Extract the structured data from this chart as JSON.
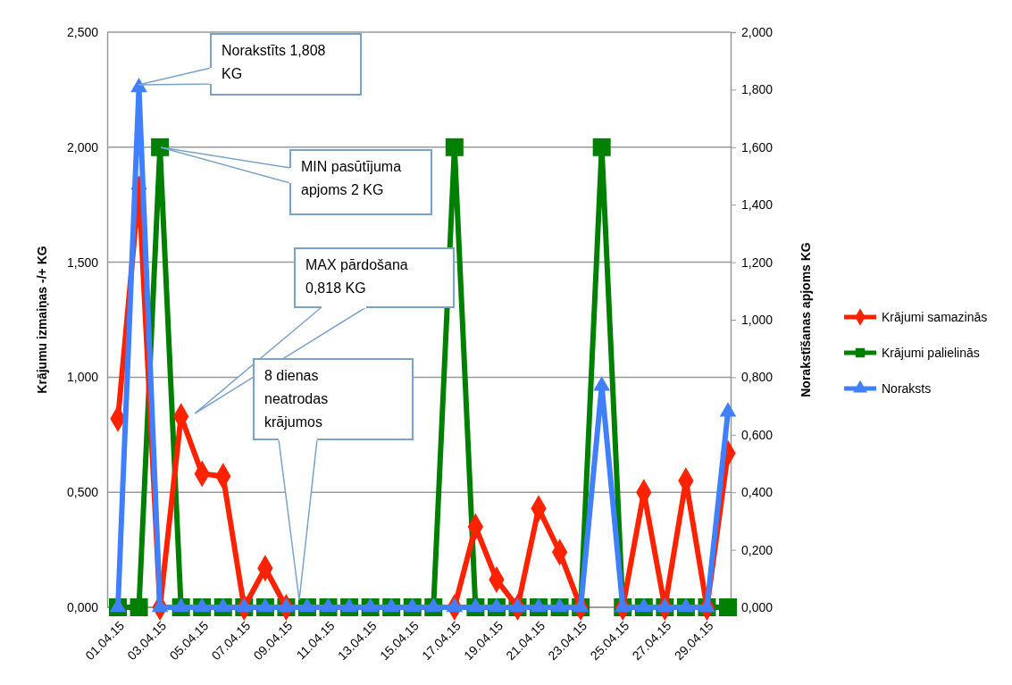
{
  "chart_data": {
    "type": "line",
    "ylabel": "Krājumu izmaiņas -/+ KG",
    "y2label": "Norakstīšanas apjoms KG",
    "categories": [
      "01.04.15",
      null,
      "03.04.15",
      null,
      "05.04.15",
      null,
      "07.04.15",
      null,
      "09.04.15",
      null,
      "11.04.15",
      null,
      "13.04.15",
      null,
      "15.04.15",
      null,
      "17.04.15",
      null,
      "19.04.15",
      null,
      "21.04.15",
      null,
      "23.04.15",
      null,
      "25.04.15",
      null,
      "27.04.15",
      null,
      "29.04.15",
      null
    ],
    "series": [
      {
        "name": "Krājumi samazinās",
        "color": "#ff2200",
        "marker": "diamond",
        "values": [
          0.82,
          1.82,
          0,
          0.83,
          0.58,
          0.57,
          0,
          0.17,
          0,
          null,
          null,
          null,
          null,
          null,
          null,
          null,
          0,
          0.35,
          0.12,
          0,
          0.43,
          0.24,
          0,
          null,
          0,
          0.5,
          0,
          0.55,
          0,
          0.67
        ]
      },
      {
        "name": "Krājumi palielinās",
        "color": "#008000",
        "marker": "square",
        "values": [
          0,
          0,
          2,
          0,
          0,
          0,
          0,
          0,
          0,
          0,
          0,
          0,
          0,
          0,
          0,
          0,
          2,
          0,
          0,
          0,
          0,
          0,
          0,
          2,
          0,
          0,
          0,
          0,
          0,
          0
        ]
      },
      {
        "name": "Noraksts",
        "color": "#4080ff",
        "marker": "triangle",
        "axis": "y2",
        "values": [
          0,
          1.808,
          0,
          0,
          0,
          0,
          0,
          0,
          0,
          0,
          0,
          0,
          0,
          0,
          0,
          0,
          0,
          0,
          0,
          0,
          0,
          0,
          0,
          0.77,
          0,
          0,
          0,
          0,
          0,
          0.68
        ]
      }
    ],
    "ylim": [
      0,
      2.5
    ],
    "yticks": [
      {
        "value": 0,
        "label": "0,000"
      },
      {
        "value": 0.5,
        "label": "0,500"
      },
      {
        "value": 1,
        "label": "1,000"
      },
      {
        "value": 1.5,
        "label": "1,500"
      },
      {
        "value": 2,
        "label": "2,000"
      },
      {
        "value": 2.5,
        "label": "2,500"
      }
    ],
    "y2lim": [
      0,
      2
    ],
    "y2ticks": [
      {
        "value": 0,
        "label": "0,000"
      },
      {
        "value": 0.2,
        "label": "0,200"
      },
      {
        "value": 0.4,
        "label": "0,400"
      },
      {
        "value": 0.6,
        "label": "0,600"
      },
      {
        "value": 0.8,
        "label": "0,800"
      },
      {
        "value": 1,
        "label": "1,000"
      },
      {
        "value": 1.2,
        "label": "1,200"
      },
      {
        "value": 1.4,
        "label": "1,400"
      },
      {
        "value": 1.6,
        "label": "1,600"
      },
      {
        "value": 1.8,
        "label": "1,800"
      },
      {
        "value": 2,
        "label": "2,000"
      }
    ],
    "grid": "y",
    "legend": "right",
    "line_style": "solid",
    "annotations": [
      "Norakstīts 1,808\nKG",
      "MIN pasūtījuma\napjoms 2 KG",
      "MAX pārdošana\n0,818 KG",
      "8 dienas\nneatrodas\nkrājumos"
    ]
  }
}
